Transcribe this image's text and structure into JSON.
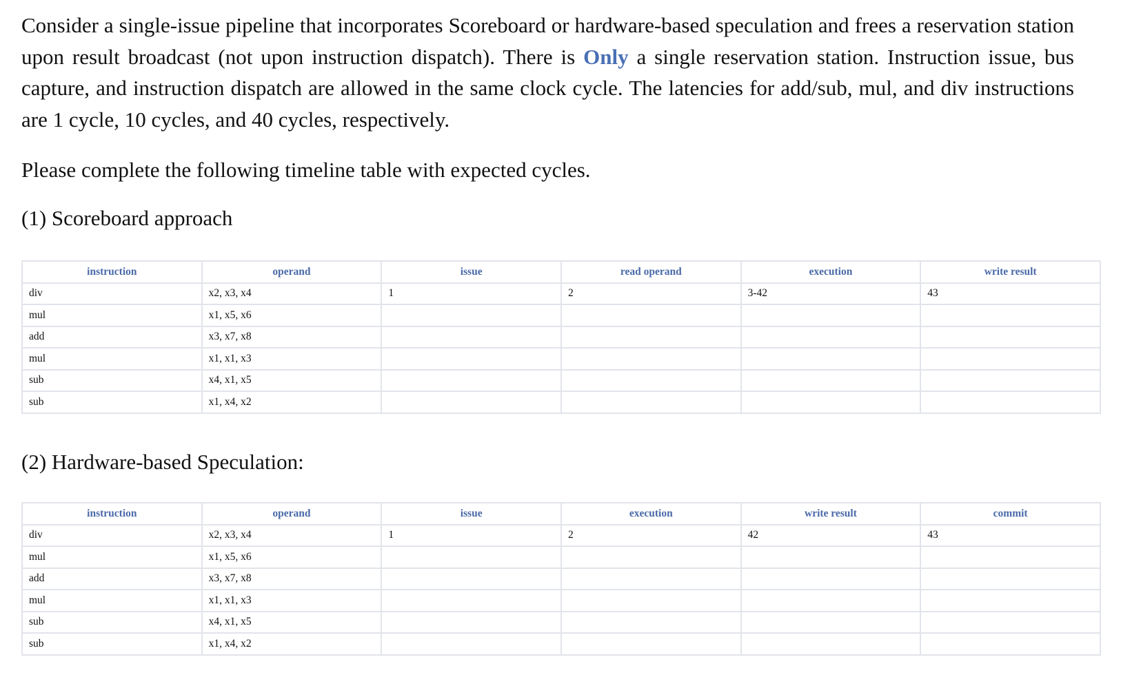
{
  "intro": {
    "before_highlight": "Consider a single-issue pipeline that incorporates Scoreboard or hardware-based speculation and frees a reservation station upon result broadcast (not upon instruction dispatch). There is ",
    "highlight": "Only",
    "after_highlight": " a single reservation station. Instruction issue, bus capture, and instruction dispatch are allowed in the same clock cycle. The latencies for add/sub, mul, and div instructions are 1 cycle, 10 cycles, and 40 cycles, respectively."
  },
  "prompt": "Please complete the following timeline table with expected cycles.",
  "section1": {
    "title": "(1) Scoreboard approach",
    "headers": [
      "instruction",
      "operand",
      "issue",
      "read operand",
      "execution",
      "write result"
    ],
    "rows": [
      [
        "div",
        "x2, x3, x4",
        "1",
        "2",
        "3-42",
        "43"
      ],
      [
        "mul",
        "x1, x5, x6",
        "",
        "",
        "",
        ""
      ],
      [
        "add",
        "x3, x7, x8",
        "",
        "",
        "",
        ""
      ],
      [
        "mul",
        "x1, x1, x3",
        "",
        "",
        "",
        ""
      ],
      [
        "sub",
        "x4, x1, x5",
        "",
        "",
        "",
        ""
      ],
      [
        "sub",
        "x1, x4, x2",
        "",
        "",
        "",
        ""
      ]
    ]
  },
  "section2": {
    "title": "(2) Hardware-based Speculation:",
    "headers": [
      "instruction",
      "operand",
      "issue",
      "execution",
      "write result",
      "commit"
    ],
    "rows": [
      [
        "div",
        "x2, x3, x4",
        "1",
        "2",
        "42",
        "43"
      ],
      [
        "mul",
        "x1, x5, x6",
        "",
        "",
        "",
        ""
      ],
      [
        "add",
        "x3, x7, x8",
        "",
        "",
        "",
        ""
      ],
      [
        "mul",
        "x1, x1, x3",
        "",
        "",
        "",
        ""
      ],
      [
        "sub",
        "x4, x1, x5",
        "",
        "",
        "",
        ""
      ],
      [
        "sub",
        "x1, x4, x2",
        "",
        "",
        "",
        ""
      ]
    ]
  },
  "colors": {
    "highlight": "#4a6fb5",
    "header_text": "#4a6aa8",
    "grid": "#e1e4ea"
  }
}
